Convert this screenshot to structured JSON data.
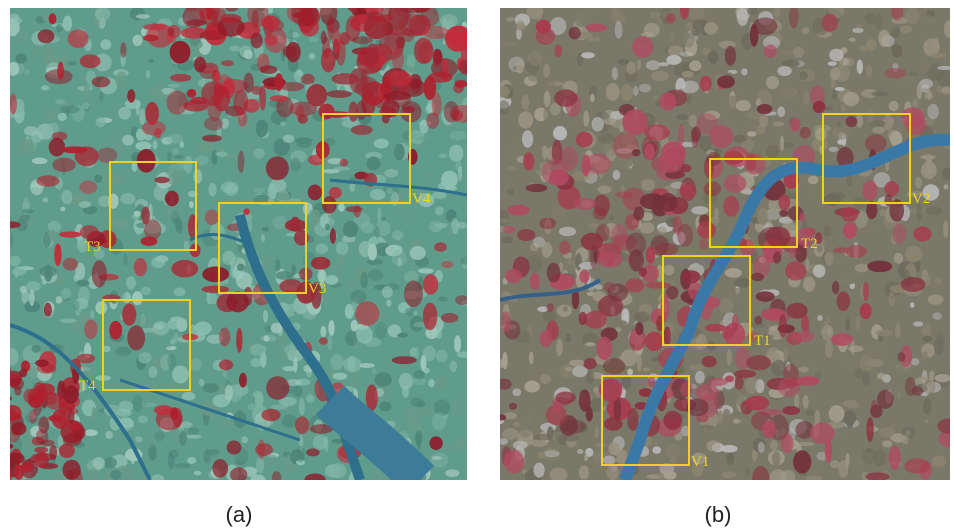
{
  "panels": [
    {
      "caption": "(a)",
      "regions": [
        {
          "label": "T3"
        },
        {
          "label": "V3"
        },
        {
          "label": "V4"
        },
        {
          "label": "T4"
        }
      ]
    },
    {
      "caption": "(b)",
      "regions": [
        {
          "label": "T2"
        },
        {
          "label": "V2"
        },
        {
          "label": "T1"
        },
        {
          "label": "V1"
        }
      ]
    }
  ]
}
